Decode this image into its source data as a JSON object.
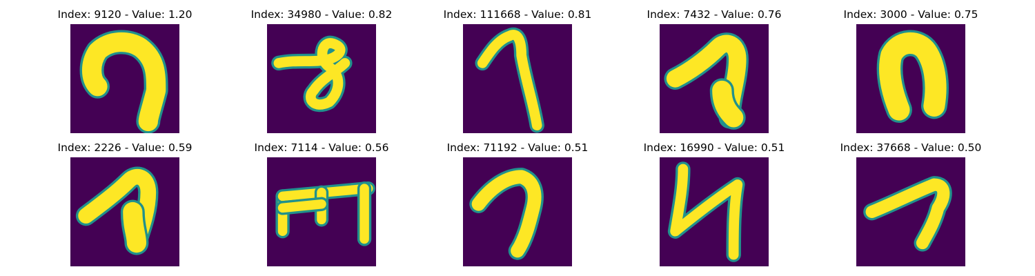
{
  "chart_data": {
    "type": "image_grid",
    "colormap": "viridis",
    "colors": {
      "background": "#440154",
      "mid": "#21918c",
      "stroke": "#fde725"
    },
    "panels": [
      {
        "title": "Index: 9120 - Value: 1.20",
        "index": 9120,
        "value": 1.2
      },
      {
        "title": "Index: 34980 - Value: 0.82",
        "index": 34980,
        "value": 0.82
      },
      {
        "title": "Index: 111668 - Value: 0.81",
        "index": 111668,
        "value": 0.81
      },
      {
        "title": "Index: 7432 - Value: 0.76",
        "index": 7432,
        "value": 0.76
      },
      {
        "title": "Index: 3000 - Value: 0.75",
        "index": 3000,
        "value": 0.75
      },
      {
        "title": "Index: 2226 - Value: 0.59",
        "index": 2226,
        "value": 0.59
      },
      {
        "title": "Index: 7114 - Value: 0.56",
        "index": 7114,
        "value": 0.56
      },
      {
        "title": "Index: 71192 - Value: 0.51",
        "index": 71192,
        "value": 0.51
      },
      {
        "title": "Index: 16990 - Value: 0.51",
        "index": 16990,
        "value": 0.51
      },
      {
        "title": "Index: 37668 - Value: 0.50",
        "index": 37668,
        "value": 0.5
      }
    ]
  }
}
